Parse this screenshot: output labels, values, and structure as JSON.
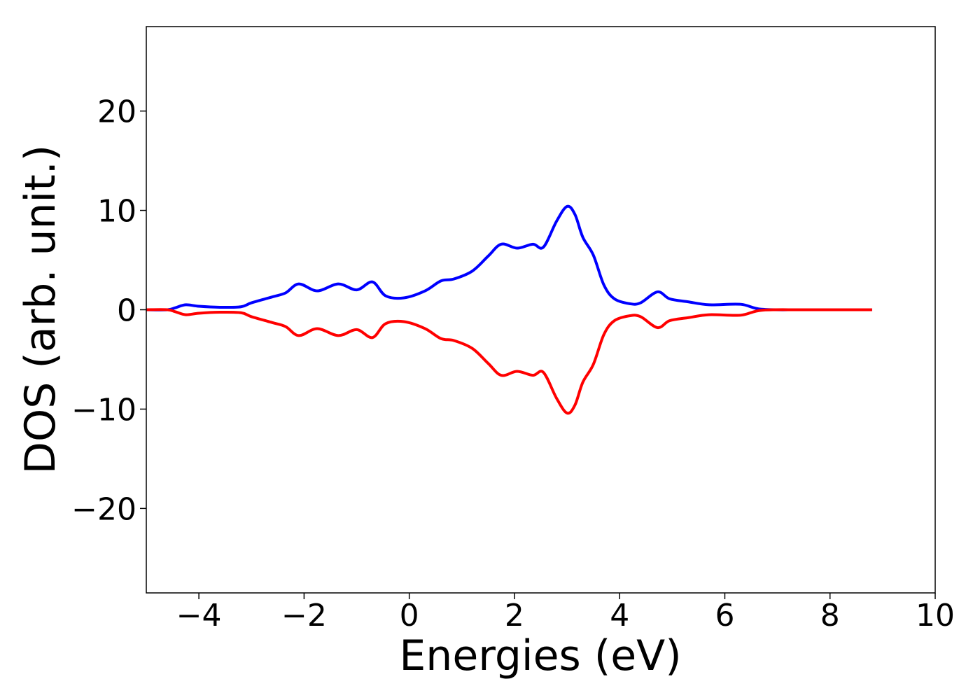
{
  "chart_data": {
    "type": "line",
    "title": "",
    "xlabel": "Energies (eV)",
    "ylabel": "DOS (arb. unit.)",
    "xlim": [
      -5,
      10
    ],
    "ylim": [
      -28.5,
      28.5
    ],
    "xticks": [
      -4,
      -2,
      0,
      2,
      4,
      6,
      8,
      10
    ],
    "yticks": [
      -20,
      -10,
      0,
      10,
      20
    ],
    "grid": false,
    "legend": "none",
    "series": [
      {
        "color": "#0000ff",
        "points": [
          [
            -5.0,
            0.0
          ],
          [
            -4.6,
            0.0
          ],
          [
            -4.45,
            0.2
          ],
          [
            -4.25,
            0.5
          ],
          [
            -4.0,
            0.35
          ],
          [
            -3.6,
            0.25
          ],
          [
            -3.2,
            0.3
          ],
          [
            -3.0,
            0.7
          ],
          [
            -2.6,
            1.3
          ],
          [
            -2.35,
            1.7
          ],
          [
            -2.1,
            2.6
          ],
          [
            -1.75,
            1.9
          ],
          [
            -1.35,
            2.6
          ],
          [
            -1.0,
            2.0
          ],
          [
            -0.7,
            2.8
          ],
          [
            -0.45,
            1.4
          ],
          [
            -0.1,
            1.2
          ],
          [
            0.3,
            1.9
          ],
          [
            0.6,
            2.9
          ],
          [
            0.85,
            3.1
          ],
          [
            1.2,
            3.9
          ],
          [
            1.5,
            5.4
          ],
          [
            1.75,
            6.6
          ],
          [
            2.05,
            6.2
          ],
          [
            2.35,
            6.6
          ],
          [
            2.55,
            6.3
          ],
          [
            2.8,
            8.9
          ],
          [
            3.0,
            10.4
          ],
          [
            3.15,
            9.6
          ],
          [
            3.3,
            7.3
          ],
          [
            3.5,
            5.5
          ],
          [
            3.7,
            2.5
          ],
          [
            3.9,
            1.1
          ],
          [
            4.2,
            0.6
          ],
          [
            4.4,
            0.7
          ],
          [
            4.72,
            1.8
          ],
          [
            4.95,
            1.1
          ],
          [
            5.3,
            0.8
          ],
          [
            5.7,
            0.5
          ],
          [
            6.3,
            0.55
          ],
          [
            6.7,
            0.05
          ],
          [
            7.5,
            0.0
          ],
          [
            8.8,
            0.0
          ]
        ]
      },
      {
        "color": "#ff0000",
        "points": [
          [
            -5.0,
            0.0
          ],
          [
            -4.6,
            0.0
          ],
          [
            -4.45,
            -0.2
          ],
          [
            -4.25,
            -0.5
          ],
          [
            -4.0,
            -0.35
          ],
          [
            -3.6,
            -0.25
          ],
          [
            -3.2,
            -0.3
          ],
          [
            -3.0,
            -0.7
          ],
          [
            -2.6,
            -1.3
          ],
          [
            -2.35,
            -1.7
          ],
          [
            -2.1,
            -2.6
          ],
          [
            -1.75,
            -1.9
          ],
          [
            -1.35,
            -2.6
          ],
          [
            -1.0,
            -2.0
          ],
          [
            -0.7,
            -2.8
          ],
          [
            -0.45,
            -1.4
          ],
          [
            -0.1,
            -1.2
          ],
          [
            0.3,
            -1.9
          ],
          [
            0.6,
            -2.9
          ],
          [
            0.85,
            -3.1
          ],
          [
            1.2,
            -3.9
          ],
          [
            1.5,
            -5.4
          ],
          [
            1.75,
            -6.6
          ],
          [
            2.05,
            -6.2
          ],
          [
            2.35,
            -6.6
          ],
          [
            2.55,
            -6.3
          ],
          [
            2.8,
            -8.9
          ],
          [
            3.0,
            -10.4
          ],
          [
            3.15,
            -9.6
          ],
          [
            3.3,
            -7.3
          ],
          [
            3.5,
            -5.5
          ],
          [
            3.7,
            -2.5
          ],
          [
            3.9,
            -1.1
          ],
          [
            4.2,
            -0.6
          ],
          [
            4.4,
            -0.7
          ],
          [
            4.72,
            -1.8
          ],
          [
            4.95,
            -1.1
          ],
          [
            5.3,
            -0.8
          ],
          [
            5.7,
            -0.5
          ],
          [
            6.3,
            -0.55
          ],
          [
            6.7,
            -0.05
          ],
          [
            7.5,
            0.0
          ],
          [
            8.8,
            0.0
          ]
        ]
      }
    ]
  }
}
